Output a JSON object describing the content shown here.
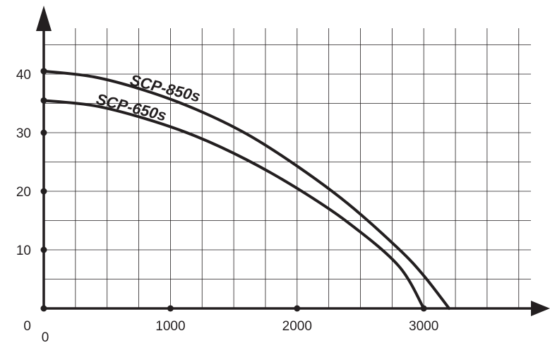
{
  "chart_data": {
    "type": "line",
    "title": "",
    "xlabel": "",
    "ylabel": "",
    "xlim": [
      0,
      3800
    ],
    "ylim": [
      0,
      45
    ],
    "grid": true,
    "legend": "none",
    "x_ticks": [
      0,
      1000,
      2000,
      3000
    ],
    "x_tick_labels": [
      "0",
      "1000",
      "2000",
      "3000"
    ],
    "y_ticks": [
      10,
      20,
      30,
      40
    ],
    "y_tick_labels": [
      "10",
      "20",
      "30",
      "40"
    ],
    "origin_label": "0",
    "series": [
      {
        "name": "SCP-850s",
        "x": [
          0,
          400,
          800,
          1200,
          1600,
          2000,
          2400,
          2800,
          3000,
          3200
        ],
        "y": [
          40.5,
          39.5,
          37.2,
          34.0,
          29.8,
          24.3,
          17.9,
          10.2,
          5.6,
          0
        ]
      },
      {
        "name": "SCP-650s",
        "x": [
          0,
          400,
          800,
          1200,
          1600,
          2000,
          2400,
          2800,
          3000
        ],
        "y": [
          35.5,
          34.6,
          32.4,
          29.4,
          25.4,
          20.5,
          14.7,
          7.3,
          0
        ]
      }
    ]
  },
  "colors": {
    "line": "#231f20",
    "grid": "#231f20"
  }
}
